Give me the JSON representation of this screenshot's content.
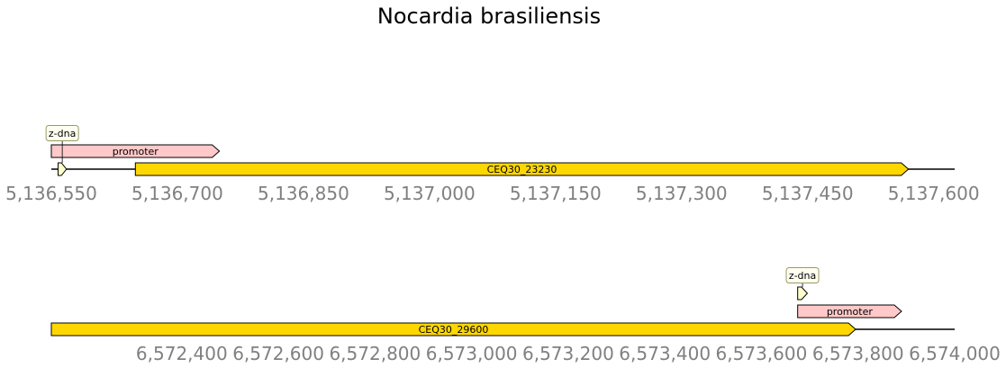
{
  "title": "Nocardia brasiliensis",
  "colors": {
    "backbone": "#000000",
    "gene": "#ffd700",
    "promoter": "#ffc9c9",
    "zdna": "#ffffcc",
    "tag_bg": "#fffff0",
    "tag_border": "#999966",
    "tick_label": "#808080"
  },
  "tracks": [
    {
      "range": [
        5136550,
        5137625
      ],
      "ticks": [
        {
          "value": 5136550,
          "label": "5,136,550"
        },
        {
          "value": 5136700,
          "label": "5,136,700"
        },
        {
          "value": 5136850,
          "label": "5,136,850"
        },
        {
          "value": 5137000,
          "label": "5,137,000"
        },
        {
          "value": 5137150,
          "label": "5,137,150"
        },
        {
          "value": 5137300,
          "label": "5,137,300"
        },
        {
          "value": 5137450,
          "label": "5,137,450"
        },
        {
          "value": 5137600,
          "label": "5,137,600"
        }
      ],
      "features": [
        {
          "type": "z-dna",
          "start": 5136558,
          "end": 5136568,
          "strand": 1,
          "label": "z-dna"
        },
        {
          "type": "promoter",
          "start": 5136550,
          "end": 5136750,
          "strand": 1,
          "label": "promoter"
        },
        {
          "type": "gene",
          "start": 5136650,
          "end": 5137570,
          "strand": 1,
          "label": "CEQ30_23230"
        }
      ]
    },
    {
      "range": [
        6572130,
        6574000
      ],
      "ticks": [
        {
          "value": 6572400,
          "label": "6,572,400"
        },
        {
          "value": 6572600,
          "label": "6,572,600"
        },
        {
          "value": 6572800,
          "label": "6,572,800"
        },
        {
          "value": 6573000,
          "label": "6,573,000"
        },
        {
          "value": 6573200,
          "label": "6,573,200"
        },
        {
          "value": 6573400,
          "label": "6,573,400"
        },
        {
          "value": 6573600,
          "label": "6,573,600"
        },
        {
          "value": 6573800,
          "label": "6,573,800"
        },
        {
          "value": 6574000,
          "label": "6,574,000"
        }
      ],
      "features": [
        {
          "type": "z-dna",
          "start": 6573675,
          "end": 6573695,
          "strand": 1,
          "label": "z-dna"
        },
        {
          "type": "promoter",
          "start": 6573675,
          "end": 6573890,
          "strand": 1,
          "label": "promoter"
        },
        {
          "type": "gene",
          "start": 6572130,
          "end": 6573795,
          "strand": 1,
          "label": "CEQ30_29600"
        }
      ]
    }
  ]
}
